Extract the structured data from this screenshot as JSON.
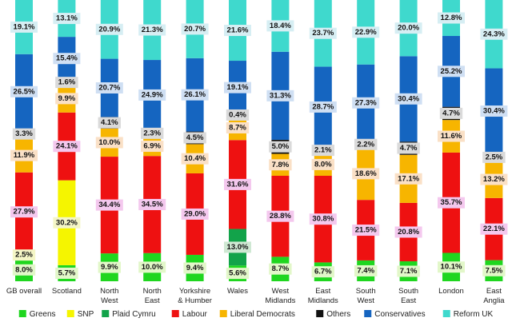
{
  "chart_data": {
    "type": "bar",
    "stacked": true,
    "normalized_percent": true,
    "title": "",
    "xlabel": "",
    "ylabel": "",
    "ylim": [
      0,
      100
    ],
    "grid": false,
    "legend_position": "bottom",
    "categories": [
      [
        "GB overall"
      ],
      [
        "Scotland"
      ],
      [
        "North",
        "West"
      ],
      [
        "North",
        "East"
      ],
      [
        "Yorkshire",
        "& Humber"
      ],
      [
        "Wales"
      ],
      [
        "West",
        "Midlands"
      ],
      [
        "East",
        "Midlands"
      ],
      [
        "South",
        "West"
      ],
      [
        "South",
        "East"
      ],
      [
        "London"
      ],
      [
        "East",
        "Anglia"
      ]
    ],
    "series": [
      {
        "name": "Greens",
        "color": "#1fd61f",
        "label_bg": "#e2f7c9",
        "values": [
          8.0,
          5.7,
          9.9,
          10.0,
          9.4,
          5.6,
          8.7,
          6.7,
          7.4,
          7.1,
          10.1,
          7.5
        ],
        "labels": [
          "8.0%",
          "5.7%",
          "9.9%",
          "10.0%",
          "9.4%",
          "5.6%",
          "8.7%",
          "6.7%",
          "7.4%",
          "7.1%",
          "10.1%",
          "7.5%"
        ]
      },
      {
        "name": "SNP",
        "color": "#f5f500",
        "label_bg": "#f4f6c6",
        "values": [
          2.5,
          30.2,
          0,
          0,
          0,
          0,
          0,
          0,
          0,
          0,
          0,
          0
        ],
        "labels": [
          "2.5%",
          "30.2%",
          null,
          null,
          null,
          null,
          null,
          null,
          null,
          null,
          null,
          null
        ]
      },
      {
        "name": "Plaid Cymru",
        "color": "#12a34a",
        "label_bg": "#cfe8d3",
        "values": [
          0,
          0,
          0,
          0,
          0,
          13.0,
          0,
          0,
          0,
          0,
          0,
          0
        ],
        "labels": [
          null,
          null,
          null,
          null,
          null,
          "13.0%",
          null,
          null,
          null,
          null,
          null,
          null
        ]
      },
      {
        "name": "Labour",
        "color": "#ee1111",
        "label_bg": "#f4c8ee",
        "values": [
          27.9,
          24.1,
          34.4,
          34.5,
          29.0,
          31.6,
          28.8,
          30.8,
          21.5,
          20.8,
          35.7,
          22.1
        ],
        "labels": [
          "27.9%",
          "24.1%",
          "34.4%",
          "34.5%",
          "29.0%",
          "31.6%",
          "28.8%",
          "30.8%",
          "21.5%",
          "20.8%",
          "35.7%",
          "22.1%"
        ]
      },
      {
        "name": "Liberal Democrats",
        "color": "#f7b500",
        "label_bg": "#fae0c6",
        "values": [
          11.9,
          9.9,
          10.0,
          6.9,
          10.4,
          8.7,
          7.8,
          8.0,
          18.6,
          17.1,
          11.6,
          13.2
        ],
        "labels": [
          "11.9%",
          "9.9%",
          "10.0%",
          "6.9%",
          "10.4%",
          "8.7%",
          "7.8%",
          "8.0%",
          "18.6%",
          "17.1%",
          "11.6%",
          "13.2%"
        ]
      },
      {
        "name": "Others",
        "color": "#111111",
        "label_bg": "#dadada",
        "values": [
          3.3,
          1.6,
          4.1,
          2.3,
          4.5,
          0.4,
          5.0,
          2.1,
          2.2,
          4.7,
          4.7,
          2.5
        ],
        "labels": [
          "3.3%",
          "1.6%",
          "4.1%",
          "2.3%",
          "4.5%",
          "0.4%",
          "5.0%",
          "2.1%",
          "2.2%",
          "4.7%",
          "4.7%",
          "2.5%"
        ]
      },
      {
        "name": "Conservatives",
        "color": "#1565c0",
        "label_bg": "#cfdff3",
        "values": [
          26.5,
          15.4,
          20.7,
          24.9,
          26.1,
          19.1,
          31.3,
          28.7,
          27.3,
          30.4,
          25.2,
          30.4
        ],
        "labels": [
          "26.5%",
          "15.4%",
          "20.7%",
          "24.9%",
          "26.1%",
          "19.1%",
          "31.3%",
          "28.7%",
          "27.3%",
          "30.4%",
          "25.2%",
          "30.4%"
        ]
      },
      {
        "name": "Reform UK",
        "color": "#3fd9cd",
        "label_bg": "#d6eef3",
        "values": [
          19.1,
          13.1,
          20.9,
          21.3,
          20.7,
          21.6,
          18.4,
          23.7,
          22.9,
          20.0,
          12.8,
          24.3
        ],
        "labels": [
          "19.1%",
          "13.1%",
          "20.9%",
          "21.3%",
          "20.7%",
          "21.6%",
          "18.4%",
          "23.7%",
          "22.9%",
          "20.0%",
          "12.8%",
          "24.3%"
        ]
      }
    ]
  }
}
